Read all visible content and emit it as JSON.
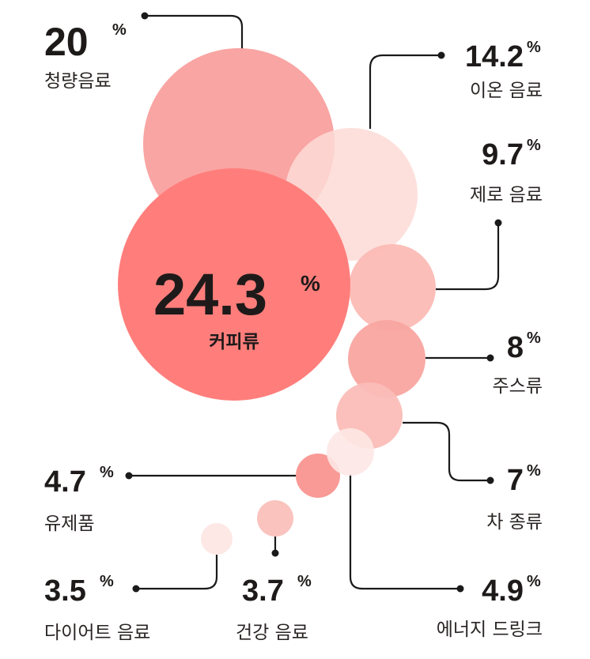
{
  "chart_data": {
    "type": "bubble",
    "title": "",
    "unit": "%",
    "items": [
      {
        "name": "커피류",
        "value": 24.3,
        "value_label": "24.3",
        "color": "#FF7E7B"
      },
      {
        "name": "청량음료",
        "value": 20,
        "value_label": "20",
        "color": "#F9A09E"
      },
      {
        "name": "이온 음료",
        "value": 14.2,
        "value_label": "14.2",
        "color": "#FDDAD6"
      },
      {
        "name": "제로 음료",
        "value": 9.7,
        "value_label": "9.7",
        "color": "#FCBBB5"
      },
      {
        "name": "주스류",
        "value": 8,
        "value_label": "8",
        "color": "#F9A5A0"
      },
      {
        "name": "차 종류",
        "value": 7,
        "value_label": "7",
        "color": "#FBBDB7"
      },
      {
        "name": "에너지 드링크",
        "value": 4.9,
        "value_label": "4.9",
        "color": "#FDE8E5"
      },
      {
        "name": "유제품",
        "value": 4.7,
        "value_label": "4.7",
        "color": "#F99A96"
      },
      {
        "name": "건강 음료",
        "value": 3.7,
        "value_label": "3.7",
        "color": "#FAC3BE"
      },
      {
        "name": "다이어트 음료",
        "value": 3.5,
        "value_label": "3.5",
        "color": "#FDE8E6"
      }
    ],
    "percent_sign": "%"
  }
}
